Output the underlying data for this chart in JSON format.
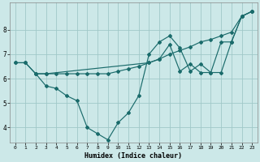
{
  "xlabel": "Humidex (Indice chaleur)",
  "bg_color": "#cce8e8",
  "grid_color": "#a0c8c8",
  "line_color": "#1a6b6b",
  "xlim": [
    -0.5,
    23.5
  ],
  "ylim": [
    3.4,
    9.1
  ],
  "yticks": [
    4,
    5,
    6,
    7,
    8
  ],
  "xticks": [
    0,
    1,
    2,
    3,
    4,
    5,
    6,
    7,
    8,
    9,
    10,
    11,
    12,
    13,
    14,
    15,
    16,
    17,
    18,
    19,
    20,
    21,
    22,
    23
  ],
  "series1_x": [
    0,
    1,
    2,
    3,
    4,
    5,
    6,
    7,
    8,
    9,
    10,
    11,
    12,
    13,
    14,
    15,
    16,
    17,
    18,
    19,
    20,
    21,
    22,
    23
  ],
  "series1_y": [
    6.65,
    6.65,
    6.2,
    6.2,
    6.2,
    6.2,
    6.2,
    6.2,
    6.2,
    6.2,
    6.3,
    6.4,
    6.5,
    6.65,
    6.8,
    7.0,
    7.15,
    7.3,
    7.5,
    7.6,
    7.75,
    7.9,
    8.55,
    8.75
  ],
  "series2_x": [
    0,
    1,
    2,
    3,
    4,
    5,
    6,
    7,
    8,
    9,
    10,
    11,
    12,
    13,
    14,
    15,
    16,
    17,
    18,
    19,
    20,
    21,
    22,
    23
  ],
  "series2_y": [
    6.65,
    6.65,
    6.2,
    5.7,
    5.6,
    5.3,
    5.1,
    4.0,
    3.75,
    3.5,
    4.2,
    4.6,
    5.3,
    7.0,
    7.5,
    7.75,
    7.25,
    6.3,
    6.6,
    6.25,
    6.25,
    7.5,
    8.55,
    8.75
  ],
  "series3_x": [
    2,
    3,
    13,
    14,
    15,
    16,
    17,
    18,
    19,
    20,
    21,
    22,
    23
  ],
  "series3_y": [
    6.2,
    6.2,
    6.65,
    6.8,
    7.4,
    6.3,
    6.6,
    6.25,
    6.25,
    7.5,
    7.5,
    8.55,
    8.75
  ]
}
